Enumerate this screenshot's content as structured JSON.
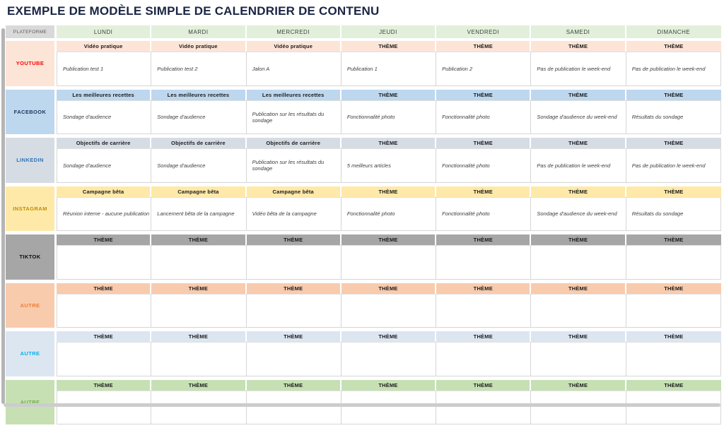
{
  "page": {
    "title": "EXEMPLE DE MODÈLE SIMPLE DE CALENDRIER DE CONTENU",
    "title_color": "#1a2543"
  },
  "table": {
    "header": {
      "corner_label": "PLATEFORME",
      "corner_bg": "#d9d9d9",
      "day_bg": "#e2efda",
      "day_headers": [
        "LUNDI",
        "MARDI",
        "MERCREDI",
        "JEUDI",
        "VENDREDI",
        "SAMEDI",
        "DIMANCHE"
      ]
    },
    "rows": [
      {
        "platform": "YOUTUBE",
        "label_color": "#ff0000",
        "bg": "#fce4d6",
        "themes": [
          "Vidéo pratique",
          "Vidéo pratique",
          "Vidéo pratique",
          "THÈME",
          "THÈME",
          "THÈME",
          "THÈME"
        ],
        "cells": [
          "Publication test 1",
          "Publication test 2",
          "Jalon A",
          "Publication 1",
          "Publication 2",
          "Pas de publication le week-end",
          "Pas de publication le week-end"
        ]
      },
      {
        "platform": "FACEBOOK",
        "label_color": "#1f3864",
        "bg": "#bdd7ee",
        "themes": [
          "Les meilleures recettes",
          "Les meilleures recettes",
          "Les meilleures recettes",
          "THÈME",
          "THÈME",
          "THÈME",
          "THÈME"
        ],
        "cells": [
          "Sondage d'audience",
          "Sondage d'audience",
          "Publication sur les résultats du sondage",
          "Fonctionnalité photo",
          "Fonctionnalité photo",
          "Sondage d'audience du week-end",
          "Résultats du sondage"
        ]
      },
      {
        "platform": "LINKEDIN",
        "label_color": "#2e75b6",
        "bg": "#d6dce4",
        "themes": [
          "Objectifs de carrière",
          "Objectifs de carrière",
          "Objectifs de carrière",
          "THÈME",
          "THÈME",
          "THÈME",
          "THÈME"
        ],
        "cells": [
          "Sondage d'audience",
          "Sondage d'audience",
          "Publication sur les résultats du sondage",
          "5 meilleurs articles",
          "Fonctionnalité photo",
          "Pas de publication le week-end",
          "Pas de publication le week-end"
        ]
      },
      {
        "platform": "INSTAGRAM",
        "label_color": "#bf8f00",
        "bg": "#ffe9a9",
        "themes": [
          "Campagne bêta",
          "Campagne bêta",
          "Campagne bêta",
          "THÈME",
          "THÈME",
          "THÈME",
          "THÈME"
        ],
        "cells": [
          "Réunion interne - aucune publication",
          "Lancement bêta de la campagne",
          "Vidéo bêta de la campagne",
          "Fonctionnalité photo",
          "Fonctionnalité photo",
          "Sondage d'audience du week-end",
          "Résultats du sondage"
        ]
      },
      {
        "platform": "TIKTOK",
        "label_color": "#0d0d0d",
        "bg": "#a6a6a6",
        "themes": [
          "THÈME",
          "THÈME",
          "THÈME",
          "THÈME",
          "THÈME",
          "THÈME",
          "THÈME"
        ],
        "cells": [
          "",
          "",
          "",
          "",
          "",
          "",
          ""
        ]
      },
      {
        "platform": "AUTRE",
        "label_color": "#ed7d31",
        "bg": "#f8cbad",
        "themes": [
          "THÈME",
          "THÈME",
          "THÈME",
          "THÈME",
          "THÈME",
          "THÈME",
          "THÈME"
        ],
        "cells": [
          "",
          "",
          "",
          "",
          "",
          "",
          ""
        ]
      },
      {
        "platform": "AUTRE",
        "label_color": "#00b0f0",
        "bg": "#dce6f1",
        "themes": [
          "THÈME",
          "THÈME",
          "THÈME",
          "THÈME",
          "THÈME",
          "THÈME",
          "THÈME"
        ],
        "cells": [
          "",
          "",
          "",
          "",
          "",
          "",
          ""
        ]
      },
      {
        "platform": "AUTRE",
        "label_color": "#70ad47",
        "bg": "#c6e0b4",
        "themes": [
          "THÈME",
          "THÈME",
          "THÈME",
          "THÈME",
          "THÈME",
          "THÈME",
          "THÈME"
        ],
        "cells": [
          "",
          "",
          "",
          "",
          "",
          "",
          ""
        ]
      }
    ]
  }
}
